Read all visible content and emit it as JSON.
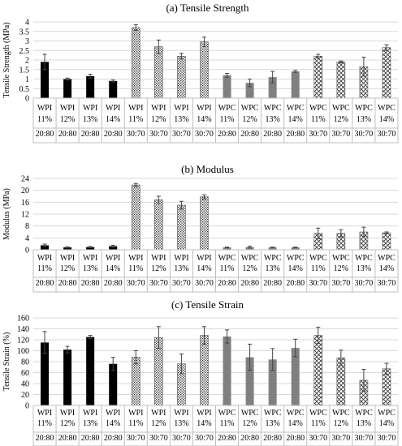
{
  "chart_data": [
    {
      "type": "bar",
      "title": "(a) Tensile Strength",
      "ylabel": "Tensile Strength (MPa)",
      "ylim": [
        0,
        4
      ],
      "yticks": [
        "0",
        "0.5",
        "1",
        "1.5",
        "2",
        "2.5",
        "3",
        "3.5",
        "4"
      ],
      "ytick_values": [
        0,
        0.5,
        1,
        1.5,
        2,
        2.5,
        3,
        3.5,
        4
      ],
      "categories": [
        {
          "material": "WPI",
          "conc": "11%",
          "ratio": "20:80"
        },
        {
          "material": "WPI",
          "conc": "12%",
          "ratio": "20:80"
        },
        {
          "material": "WPI",
          "conc": "13%",
          "ratio": "20:80"
        },
        {
          "material": "WPI",
          "conc": "14%",
          "ratio": "20:80"
        },
        {
          "material": "WPI",
          "conc": "11%",
          "ratio": "30:70"
        },
        {
          "material": "WPI",
          "conc": "12%",
          "ratio": "30:70"
        },
        {
          "material": "WPI",
          "conc": "13%",
          "ratio": "30:70"
        },
        {
          "material": "WPI",
          "conc": "14%",
          "ratio": "30:70"
        },
        {
          "material": "WPC",
          "conc": "11%",
          "ratio": "20:80"
        },
        {
          "material": "WPC",
          "conc": "12%",
          "ratio": "20:80"
        },
        {
          "material": "WPC",
          "conc": "13%",
          "ratio": "20:80"
        },
        {
          "material": "WPC",
          "conc": "14%",
          "ratio": "20:80"
        },
        {
          "material": "WPC",
          "conc": "11%",
          "ratio": "30:70"
        },
        {
          "material": "WPC",
          "conc": "12%",
          "ratio": "30:70"
        },
        {
          "material": "WPC",
          "conc": "13%",
          "ratio": "30:70"
        },
        {
          "material": "WPC",
          "conc": "14%",
          "ratio": "30:70"
        }
      ],
      "values": [
        1.9,
        1.0,
        1.15,
        0.9,
        3.7,
        2.7,
        2.2,
        2.95,
        1.2,
        0.8,
        1.1,
        1.4,
        2.2,
        1.9,
        1.65,
        2.65
      ],
      "errors": [
        0.4,
        0.05,
        0.1,
        0.05,
        0.15,
        0.35,
        0.15,
        0.25,
        0.1,
        0.2,
        0.3,
        0.05,
        0.1,
        0.05,
        0.5,
        0.15
      ]
    },
    {
      "type": "bar",
      "title": "(b) Modulus",
      "ylabel": "Modulus (MPa)",
      "ylim": [
        0,
        24
      ],
      "yticks": [
        "0",
        "4",
        "8",
        "12",
        "16",
        "20",
        "24"
      ],
      "ytick_values": [
        0,
        4,
        8,
        12,
        16,
        20,
        24
      ],
      "values": [
        1.5,
        0.8,
        0.9,
        1.2,
        21.8,
        16.8,
        15.0,
        17.8,
        0.8,
        0.9,
        0.8,
        0.8,
        5.5,
        5.5,
        6.0,
        5.7
      ],
      "errors": [
        0.4,
        0.2,
        0.2,
        0.3,
        0.5,
        1.2,
        1.3,
        0.7,
        0.1,
        0.3,
        0.1,
        0.1,
        1.8,
        1.2,
        1.6,
        0.3
      ]
    },
    {
      "type": "bar",
      "title": "(c) Tensile Strain",
      "ylabel": "Tensile Strain (%)",
      "ylim": [
        0,
        160
      ],
      "yticks": [
        "0",
        "20",
        "40",
        "60",
        "80",
        "100",
        "120",
        "140",
        "160"
      ],
      "ytick_values": [
        0,
        20,
        40,
        60,
        80,
        100,
        120,
        140,
        160
      ],
      "values": [
        115,
        102,
        125,
        76,
        88,
        124,
        76,
        128,
        126,
        88,
        84,
        105,
        128,
        87,
        46,
        67
      ],
      "errors": [
        20,
        6,
        3,
        12,
        12,
        20,
        18,
        16,
        12,
        24,
        20,
        16,
        15,
        14,
        20,
        10
      ]
    }
  ],
  "series_styles": {
    "wpi_2080": {
      "fill": "#000000",
      "pattern": "solid"
    },
    "wpi_3070": {
      "fill": "#ffffff",
      "pattern": "dots"
    },
    "wpc_2080": {
      "fill": "#808080",
      "pattern": "solid"
    },
    "wpc_3070": {
      "fill": "#ffffff",
      "pattern": "crosshatch"
    }
  }
}
